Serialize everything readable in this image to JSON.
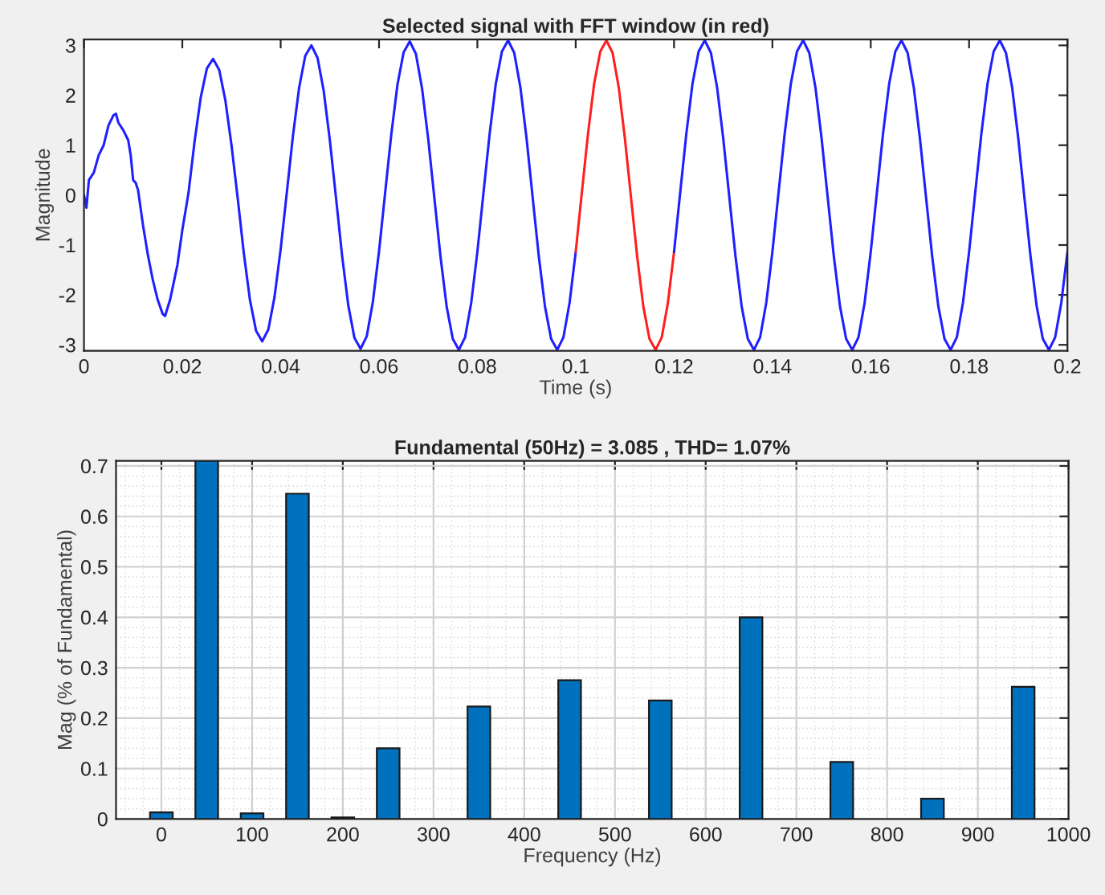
{
  "chart_data": [
    {
      "type": "line",
      "title": "Selected signal with FFT window (in red)",
      "xlabel": "Time (s)",
      "ylabel": "Magnitude",
      "xlim": [
        0,
        0.2
      ],
      "ylim": [
        -3.12,
        3.12
      ],
      "xticks": [
        0,
        0.02,
        0.04,
        0.06,
        0.08,
        0.1,
        0.12,
        0.14,
        0.16,
        0.18,
        0.2
      ],
      "yticks": [
        -3,
        -2,
        -1,
        0,
        1,
        2,
        3
      ],
      "grid": false,
      "legend": false,
      "series": [
        {
          "color": "#1f1fff",
          "x": [
            0,
            0.0005,
            0.001,
            0.002,
            0.003,
            0.004,
            0.005,
            0.006,
            0.0065,
            0.007,
            0.008,
            0.009,
            0.0095,
            0.01,
            0.0105,
            0.011,
            0.012,
            0.013,
            0.014,
            0.015,
            0.016,
            0.0165,
            0.0175,
            0.019,
            0.02,
            0.02125,
            0.0225,
            0.02375,
            0.025,
            0.02625,
            0.0275,
            0.02875,
            0.03,
            0.03125,
            0.0325,
            0.03375,
            0.035,
            0.03625,
            0.0375,
            0.03875,
            0.04,
            0.04125,
            0.0425,
            0.04375,
            0.045,
            0.04625,
            0.0475,
            0.04875,
            0.05,
            0.05125,
            0.0525,
            0.05375,
            0.055,
            0.05625,
            0.0575,
            0.05875,
            0.06,
            0.06125,
            0.0625,
            0.06375,
            0.065,
            0.06625,
            0.0675,
            0.06875,
            0.07,
            0.07125,
            0.0725,
            0.07375,
            0.075,
            0.07625,
            0.0775,
            0.07875,
            0.08,
            0.08125,
            0.0825,
            0.08375,
            0.085,
            0.08625,
            0.0875,
            0.08875,
            0.09,
            0.09125,
            0.0925,
            0.09375,
            0.095,
            0.09625,
            0.0975,
            0.09875,
            0.1
          ],
          "values": [
            0,
            -0.25,
            0.3,
            0.45,
            0.8,
            1.0,
            1.4,
            1.6,
            1.63,
            1.45,
            1.3,
            1.1,
            0.8,
            0.3,
            0.25,
            0.1,
            -0.6,
            -1.2,
            -1.7,
            -2.1,
            -2.38,
            -2.42,
            -2.1,
            -1.4,
            -0.7,
            0.04,
            1.08,
            1.96,
            2.54,
            2.73,
            2.51,
            1.9,
            1.0,
            -0.05,
            -1.16,
            -2.1,
            -2.72,
            -2.93,
            -2.69,
            -2.04,
            -1.08,
            0.05,
            1.19,
            2.15,
            2.79,
            3.0,
            2.75,
            2.09,
            1.1,
            -0.05,
            -1.22,
            -2.21,
            -2.86,
            -3.08,
            -2.83,
            -2.14,
            -1.13,
            0.05,
            1.22,
            2.21,
            2.86,
            3.08,
            2.83,
            2.14,
            1.13,
            -0.05,
            -1.23,
            -2.23,
            -2.88,
            -3.1,
            -2.85,
            -2.16,
            -1.14,
            0.05,
            1.23,
            2.23,
            2.88,
            3.1,
            2.85,
            2.16,
            1.14,
            -0.05,
            -1.23,
            -2.23,
            -2.88,
            -3.1,
            -2.85,
            -2.16,
            -1.14
          ]
        },
        {
          "color": "#ff1f1f",
          "x": [
            0.1,
            0.10125,
            0.1025,
            0.10375,
            0.105,
            0.10625,
            0.1075,
            0.10875,
            0.11,
            0.11125,
            0.1125,
            0.11375,
            0.115,
            0.11625,
            0.1175,
            0.11875,
            0.12
          ],
          "values": [
            -1.14,
            0.05,
            1.23,
            2.23,
            2.88,
            3.1,
            2.85,
            2.16,
            1.14,
            -0.05,
            -1.23,
            -2.23,
            -2.88,
            -3.1,
            -2.85,
            -2.16,
            -1.14
          ]
        },
        {
          "color": "#1f1fff",
          "x": [
            0.12,
            0.12125,
            0.1225,
            0.12375,
            0.125,
            0.12625,
            0.1275,
            0.12875,
            0.13,
            0.13125,
            0.1325,
            0.13375,
            0.135,
            0.13625,
            0.1375,
            0.13875,
            0.14,
            0.14125,
            0.1425,
            0.14375,
            0.145,
            0.14625,
            0.1475,
            0.14875,
            0.15,
            0.15125,
            0.1525,
            0.15375,
            0.155,
            0.15625,
            0.1575,
            0.15875,
            0.16,
            0.16125,
            0.1625,
            0.16375,
            0.165,
            0.16625,
            0.1675,
            0.16875,
            0.17,
            0.17125,
            0.1725,
            0.17375,
            0.175,
            0.17625,
            0.1775,
            0.17875,
            0.18,
            0.18125,
            0.1825,
            0.18375,
            0.185,
            0.18625,
            0.1875,
            0.18875,
            0.19,
            0.19125,
            0.1925,
            0.19375,
            0.195,
            0.19625,
            0.1975,
            0.19875,
            0.2
          ],
          "values": [
            -1.14,
            0.05,
            1.23,
            2.23,
            2.88,
            3.1,
            2.85,
            2.16,
            1.14,
            -0.05,
            -1.23,
            -2.23,
            -2.88,
            -3.1,
            -2.85,
            -2.16,
            -1.14,
            0.05,
            1.23,
            2.23,
            2.88,
            3.1,
            2.85,
            2.16,
            1.14,
            -0.05,
            -1.23,
            -2.23,
            -2.88,
            -3.1,
            -2.85,
            -2.16,
            -1.14,
            0.05,
            1.23,
            2.23,
            2.88,
            3.1,
            2.85,
            2.16,
            1.14,
            -0.05,
            -1.23,
            -2.23,
            -2.88,
            -3.1,
            -2.85,
            -2.16,
            -1.14,
            0.05,
            1.23,
            2.23,
            2.88,
            3.1,
            2.85,
            2.16,
            1.14,
            -0.05,
            -1.23,
            -2.23,
            -2.88,
            -3.1,
            -2.85,
            -2.16,
            -1.14
          ]
        }
      ]
    },
    {
      "type": "bar",
      "title": "Fundamental (50Hz) = 3.085 , THD= 1.07%",
      "xlabel": "Frequency (Hz)",
      "ylabel": "Mag (% of Fundamental)",
      "xlim": [
        -50,
        1000
      ],
      "ylim": [
        0,
        0.71
      ],
      "xticks": [
        0,
        100,
        200,
        300,
        400,
        500,
        600,
        700,
        800,
        900,
        1000
      ],
      "yticks": [
        0,
        0.1,
        0.2,
        0.3,
        0.4,
        0.5,
        0.6,
        0.7
      ],
      "grid": true,
      "legend": false,
      "x": [
        0,
        50,
        100,
        150,
        200,
        250,
        350,
        450,
        550,
        650,
        750,
        850,
        950
      ],
      "values": [
        0.013,
        0.71,
        0.011,
        0.645,
        0.003,
        0.14,
        0.223,
        0.275,
        0.235,
        0.4,
        0.113,
        0.04,
        0.262
      ],
      "color": "#0072bd"
    }
  ]
}
